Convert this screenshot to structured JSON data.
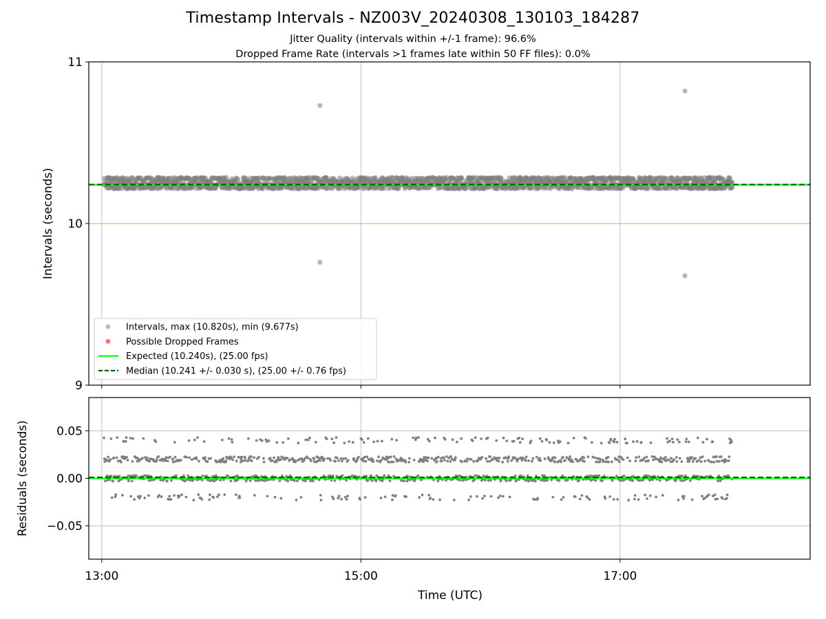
{
  "title": "Timestamp Intervals - NZ003V_20240308_130103_184287",
  "subtitle_jitter": "Jitter Quality (intervals within +/-1 frame): 96.6%",
  "subtitle_dropped": "Dropped Frame Rate (intervals >1 frames late within 50 FF files): 0.0%",
  "colors": {
    "points": "#808080",
    "dropped": "#ff0000",
    "expected": "#00ff00",
    "median": "#006400",
    "reference": "#daa520",
    "grid": "#b0b0b0"
  },
  "chart_data": [
    {
      "type": "scatter",
      "panel": "intervals",
      "xlabel": "",
      "ylabel": "Intervals (seconds)",
      "x_range": [
        "12:54",
        "18:28"
      ],
      "ylim": [
        9,
        11
      ],
      "y_ticks": [
        9,
        10,
        11
      ],
      "y_tick_labels": [
        "9",
        "10",
        "11"
      ],
      "x_ticks": [
        "13:00",
        "15:00",
        "17:00"
      ],
      "grid": "vertical only",
      "reference_line": 10.0,
      "expected": 10.24,
      "median": 10.241,
      "legend_position": "lower-left",
      "legend": [
        {
          "label": "Intervals, max (10.820s), min (9.677s)",
          "kind": "marker",
          "color": "#808080"
        },
        {
          "label": "Possible Dropped Frames",
          "kind": "marker",
          "color": "#ff0000"
        },
        {
          "label": "Expected (10.240s), (25.00 fps)",
          "kind": "solid",
          "color": "#00ff00"
        },
        {
          "label": "Median (10.241 +/- 0.030 s), (25.00 +/- 0.76 fps)",
          "kind": "dashed",
          "color": "#006400"
        }
      ],
      "series_band": {
        "x_start": "13:01",
        "x_end": "17:52",
        "levels": [
          10.22,
          10.24,
          10.26,
          10.28
        ]
      },
      "outliers": [
        {
          "x": "14:41",
          "y": 10.73
        },
        {
          "x": "14:41",
          "y": 9.76
        },
        {
          "x": "17:30",
          "y": 10.82
        },
        {
          "x": "17:30",
          "y": 9.677
        }
      ],
      "dropped_frames": []
    },
    {
      "type": "scatter",
      "panel": "residuals",
      "xlabel": "Time (UTC)",
      "ylabel": "Residuals (seconds)",
      "x_range": [
        "12:54",
        "18:28"
      ],
      "ylim": [
        -0.085,
        0.085
      ],
      "y_ticks": [
        -0.05,
        0.0,
        0.05
      ],
      "y_tick_labels": [
        "−0.05",
        "0.00",
        "0.05"
      ],
      "x_ticks": [
        "13:00",
        "15:00",
        "17:00"
      ],
      "x_tick_labels": [
        "13:00",
        "15:00",
        "17:00"
      ],
      "grid": "both",
      "expected": 0.0,
      "median": 0.001,
      "series_band": {
        "x_start": "13:01",
        "x_end": "17:52",
        "levels": [
          -0.02,
          0.0,
          0.02,
          0.04
        ]
      }
    }
  ]
}
